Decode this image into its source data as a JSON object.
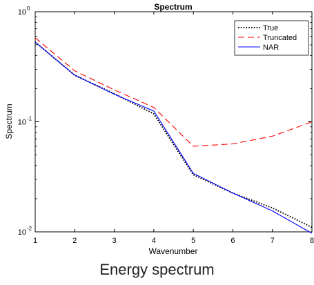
{
  "chart_data": {
    "type": "line",
    "title": "Spectrum",
    "xlabel": "Wavenumber",
    "ylabel": "Spectrum",
    "xlim": [
      1,
      8
    ],
    "ylim": [
      0.01,
      1
    ],
    "yscale": "log",
    "x_ticks": [
      "1",
      "2",
      "3",
      "4",
      "5",
      "6",
      "7",
      "8"
    ],
    "y_ticks": [
      {
        "value": 1,
        "base": "10",
        "exp": "0"
      },
      {
        "value": 0.1,
        "base": "10",
        "exp": "-1"
      },
      {
        "value": 0.01,
        "base": "10",
        "exp": "-2"
      }
    ],
    "grid": false,
    "legend_position": "top-right",
    "x": [
      1,
      2,
      3,
      4,
      5,
      6,
      7,
      8
    ],
    "series": [
      {
        "name": "True",
        "color": "#000000",
        "style": "dotted",
        "values": [
          0.53,
          0.265,
          0.18,
          0.118,
          0.033,
          0.0225,
          0.0165,
          0.011
        ]
      },
      {
        "name": "Truncated",
        "color": "#ff0000",
        "style": "dashed",
        "values": [
          0.58,
          0.29,
          0.195,
          0.135,
          0.06,
          0.063,
          0.074,
          0.1
        ]
      },
      {
        "name": "NAR",
        "color": "#0000ff",
        "style": "solid",
        "values": [
          0.53,
          0.265,
          0.178,
          0.125,
          0.034,
          0.0225,
          0.0155,
          0.0097
        ]
      }
    ]
  },
  "caption": "Energy spectrum"
}
